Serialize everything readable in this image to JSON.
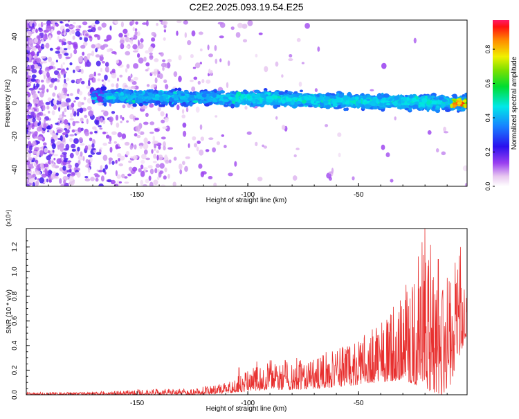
{
  "title": "C2E2.2025.093.19.54.E25",
  "colors": {
    "snr_line": "#e8302f",
    "background": "#ffffff",
    "axis": "#000000"
  },
  "chart_data": [
    {
      "type": "heatmap",
      "title": "C2E2.2025.093.19.54.E25",
      "xlabel": "Height of straight line (km)",
      "ylabel": "Frequency (Hz)",
      "xlim": [
        -200,
        -1
      ],
      "ylim": [
        -50,
        50
      ],
      "x_ticks": [
        -150,
        -100,
        -50
      ],
      "y_ticks": [
        -40,
        -20,
        0,
        20,
        40
      ],
      "colorbar": {
        "label": "Normalized spectral amplitude",
        "range": [
          0,
          0.97
        ],
        "ticks": [
          0.0,
          0.2,
          0.4,
          0.6,
          0.8
        ],
        "colormap": "rainbow (white → purple → blue → cyan → green → yellow → red)"
      },
      "feature": {
        "description": "dominant narrow-band signal near 0 Hz",
        "center_frequency_hz": [
          [
            -165,
            4
          ],
          [
            -100,
            3
          ],
          [
            -50,
            1
          ],
          [
            -1,
            0
          ]
        ],
        "band_half_width_hz": 4,
        "peak_amplitude_near_km": -5
      },
      "grid": false
    },
    {
      "type": "line",
      "xlabel": "Height of straight line (km)",
      "ylabel": "SNR (10 * v/v)",
      "y_multiplier": "(x10⁴)",
      "xlim": [
        -200,
        -1
      ],
      "ylim": [
        0,
        1.35
      ],
      "x_ticks": [
        -150,
        -100,
        -50
      ],
      "y_ticks": [
        0.0,
        0.2,
        0.4,
        0.6,
        0.8,
        1.0,
        1.2
      ],
      "envelope": {
        "x": [
          -200,
          -180,
          -160,
          -140,
          -125,
          -110,
          -100,
          -90,
          -80,
          -70,
          -60,
          -50,
          -40,
          -30,
          -20,
          -15,
          -10,
          -5,
          -1
        ],
        "min": [
          0,
          0,
          0,
          0,
          0,
          0.01,
          0.03,
          0.04,
          0.04,
          0.05,
          0.06,
          0.08,
          0.1,
          0.12,
          0.05,
          0.0,
          0.0,
          0.28,
          0.5
        ],
        "max": [
          0.02,
          0.02,
          0.03,
          0.05,
          0.05,
          0.1,
          0.2,
          0.28,
          0.3,
          0.3,
          0.4,
          0.45,
          0.6,
          0.85,
          1.35,
          1.1,
          0.95,
          1.2,
          0.85
        ]
      },
      "spikes": [
        [
          -104,
          0.22
        ],
        [
          -96,
          0.27
        ],
        [
          -90,
          0.28
        ],
        [
          -57,
          0.38
        ],
        [
          -22,
          0.87
        ],
        [
          -20,
          1.35
        ],
        [
          -14,
          1.1
        ],
        [
          -10,
          0.95
        ],
        [
          -4,
          1.2
        ],
        [
          -1,
          0.85
        ]
      ],
      "grid": false
    }
  ]
}
